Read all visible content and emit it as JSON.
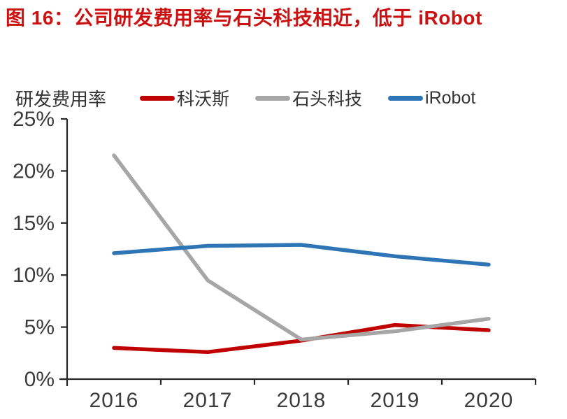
{
  "header": {
    "title": "图 16：公司研发费用率与石头科技相近，低于 iRobot",
    "title_color": "#CC1111"
  },
  "chart_data": {
    "type": "line",
    "title": "图 16：公司研发费用率与石头科技相近，低于 iRobot",
    "y_axis_label": "研发费用率",
    "categories": [
      "2016",
      "2017",
      "2018",
      "2019",
      "2020"
    ],
    "series": [
      {
        "name": "科沃斯",
        "color": "#C00000",
        "values": [
          3.0,
          2.6,
          3.7,
          5.2,
          4.7
        ]
      },
      {
        "name": "石头科技",
        "color": "#A6A6A6",
        "values": [
          21.5,
          9.5,
          3.8,
          4.6,
          5.8
        ]
      },
      {
        "name": "iRobot",
        "color": "#2E75B6",
        "values": [
          12.1,
          12.8,
          12.9,
          11.8,
          11.0
        ]
      }
    ],
    "ylim": [
      0,
      25
    ],
    "ytick_step": 5,
    "ytick_labels": [
      "0%",
      "5%",
      "10%",
      "15%",
      "20%",
      "25%"
    ],
    "grid": false,
    "legend_position": "top",
    "axis_color": "#262626",
    "tick_label_color": "#3C3C3C"
  }
}
